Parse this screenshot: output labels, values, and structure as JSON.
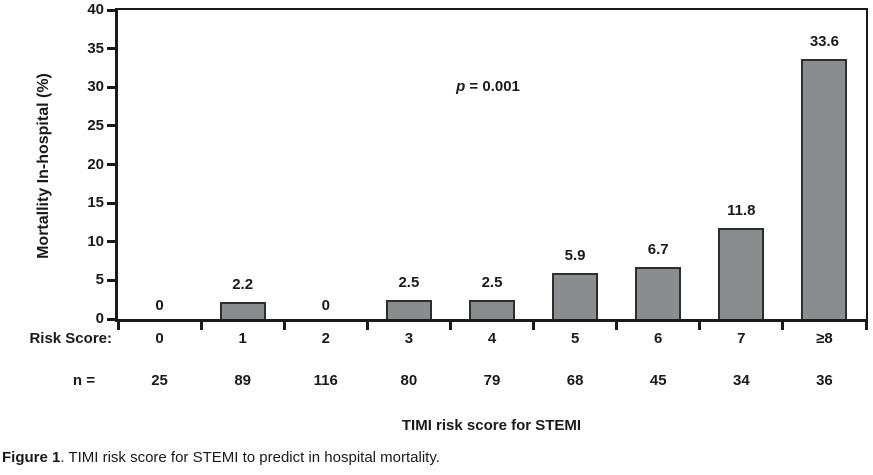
{
  "chart_data": {
    "type": "bar",
    "title": "",
    "xlabel": "TIMI risk score for STEMI",
    "ylabel": "Mortallity In-hospital (%)",
    "categories": [
      "0",
      "1",
      "2",
      "3",
      "4",
      "5",
      "6",
      "7",
      "≥8"
    ],
    "values": [
      0,
      2.2,
      0,
      2.5,
      2.5,
      5.9,
      6.7,
      11.8,
      33.6
    ],
    "value_labels": [
      "0",
      "2.2",
      "0",
      "2.5",
      "2.5",
      "5.9",
      "6.7",
      "11.8",
      "33.6"
    ],
    "n_values": [
      "25",
      "89",
      "116",
      "80",
      "79",
      "68",
      "45",
      "34",
      "36"
    ],
    "ylim": [
      0,
      40
    ],
    "yticks": [
      0,
      5,
      10,
      15,
      20,
      25,
      30,
      35,
      40
    ],
    "grid": false,
    "legend": "none",
    "annotation": {
      "italic": "p",
      "rest": " = 0.001"
    },
    "row_labels": {
      "risk_score": "Risk Score:",
      "n": "n ="
    },
    "bar_color": "#8a8c8e",
    "bar_border_color": "#2e2e2e",
    "axis_color": "#1a1a1a"
  },
  "caption": {
    "bold": "Figure 1",
    "rest": ". TIMI risk score for STEMI to predict in hospital mortality."
  }
}
